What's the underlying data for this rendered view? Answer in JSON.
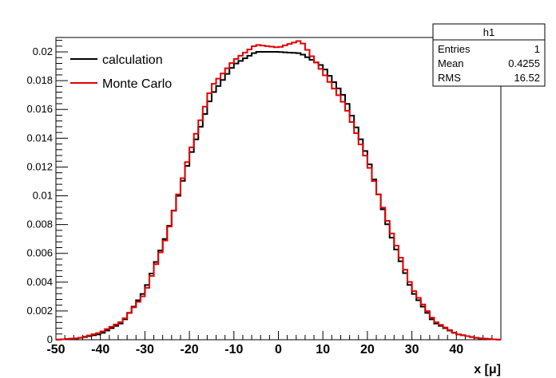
{
  "chart_data": {
    "type": "line",
    "title": "",
    "xlabel": "x [μ]",
    "ylabel": "",
    "xlim": [
      -50,
      50
    ],
    "ylim": [
      0,
      0.021
    ],
    "x_ticks": [
      "-50",
      "-40",
      "-30",
      "-20",
      "-10",
      "0",
      "10",
      "20",
      "30",
      "40"
    ],
    "y_ticks": [
      "0",
      "0.002",
      "0.004",
      "0.006",
      "0.008",
      "0.01",
      "0.012",
      "0.014",
      "0.016",
      "0.018",
      "0.02"
    ],
    "grid": false,
    "legend_position": "top-left",
    "colors": {
      "calculation": "#000000",
      "monte_carlo": "#e00000"
    },
    "series": [
      {
        "name": "calculation",
        "x": [
          -50,
          -45,
          -40,
          -35,
          -30,
          -25,
          -20,
          -15,
          -10,
          -5,
          0,
          5,
          10,
          15,
          20,
          25,
          30,
          35,
          40,
          45,
          50
        ],
        "values": [
          0.0,
          0.0001,
          0.0004,
          0.0012,
          0.0034,
          0.0074,
          0.0126,
          0.017,
          0.0191,
          0.02,
          0.02,
          0.0199,
          0.019,
          0.0168,
          0.0127,
          0.0075,
          0.0034,
          0.0012,
          0.0004,
          0.0001,
          0.0
        ]
      },
      {
        "name": "Monte Carlo",
        "x": [
          -50,
          -45,
          -40,
          -35,
          -30,
          -25,
          -20,
          -15,
          -10,
          -5,
          0,
          5,
          10,
          15,
          20,
          25,
          30,
          35,
          40,
          45,
          50
        ],
        "values": [
          0.0,
          0.0001,
          0.0005,
          0.0013,
          0.0032,
          0.0073,
          0.0129,
          0.0176,
          0.0194,
          0.0205,
          0.0203,
          0.0208,
          0.0186,
          0.0163,
          0.0124,
          0.0078,
          0.0036,
          0.0013,
          0.0004,
          0.0001,
          0.0
        ]
      }
    ],
    "legend": {
      "entries": [
        "calculation",
        "Monte Carlo"
      ]
    },
    "stats_box": {
      "title": "h1",
      "rows": [
        {
          "label": "Entries",
          "value": "1"
        },
        {
          "label": "Mean",
          "value": "0.4255"
        },
        {
          "label": "RMS",
          "value": "16.52"
        }
      ]
    }
  }
}
